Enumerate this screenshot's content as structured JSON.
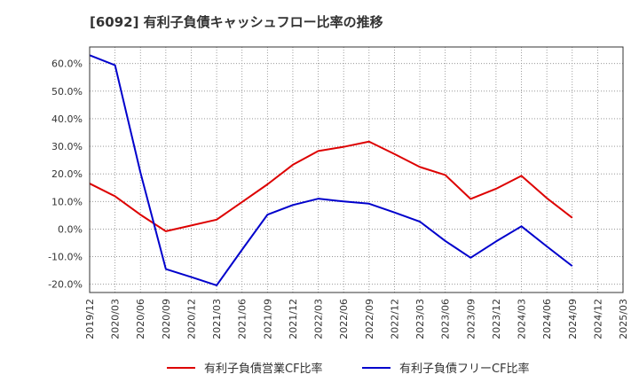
{
  "chart_data": {
    "type": "line",
    "title": "[6092]  有利子負債キャッシュフロー比率の推移",
    "xlabel": "",
    "ylabel": "",
    "x_ticks": [
      "2019/12",
      "2020/03",
      "2020/06",
      "2020/09",
      "2020/12",
      "2021/03",
      "2021/06",
      "2021/09",
      "2021/12",
      "2022/03",
      "2022/06",
      "2022/09",
      "2022/12",
      "2023/03",
      "2023/06",
      "2023/09",
      "2023/12",
      "2024/03",
      "2024/06",
      "2024/09",
      "2024/12",
      "2025/03"
    ],
    "y_ticks": [
      "-20.0%",
      "-10.0%",
      "0.0%",
      "10.0%",
      "20.0%",
      "30.0%",
      "40.0%",
      "50.0%",
      "60.0%"
    ],
    "ylim": [
      -23,
      66
    ],
    "grid": true,
    "legend_position": "bottom",
    "series": [
      {
        "name": "有利子負債営業CF比率",
        "color": "#dd0000",
        "x": [
          "2019/12",
          "2020/03",
          "2020/06",
          "2020/09",
          "2020/12",
          "2021/03",
          "2021/06",
          "2021/09",
          "2021/12",
          "2022/03",
          "2022/06",
          "2022/09",
          "2022/12",
          "2023/03",
          "2023/06",
          "2023/09",
          "2023/12",
          "2024/03",
          "2024/06",
          "2024/09"
        ],
        "values": [
          16.5,
          11.9,
          5.2,
          -0.8,
          1.3,
          3.4,
          9.8,
          16.2,
          23.3,
          28.3,
          29.8,
          31.7,
          27.2,
          22.5,
          19.6,
          10.9,
          14.6,
          19.3,
          11.2,
          4.1
        ]
      },
      {
        "name": "有利子負債フリーCF比率",
        "color": "#0000cc",
        "x": [
          "2019/12",
          "2020/03",
          "2020/06",
          "2020/09",
          "2020/12",
          "2021/03",
          "2021/06",
          "2021/09",
          "2021/12",
          "2022/03",
          "2022/06",
          "2022/09",
          "2022/12",
          "2023/03",
          "2023/06",
          "2023/09",
          "2023/12",
          "2024/03",
          "2024/06",
          "2024/09"
        ],
        "values": [
          63.0,
          59.4,
          20.5,
          -14.5,
          -17.4,
          -20.4,
          -7.5,
          5.2,
          8.7,
          11.0,
          10.0,
          9.2,
          6.0,
          2.7,
          -4.3,
          -10.4,
          -4.5,
          1.0,
          -6.3,
          -13.4
        ]
      }
    ]
  }
}
